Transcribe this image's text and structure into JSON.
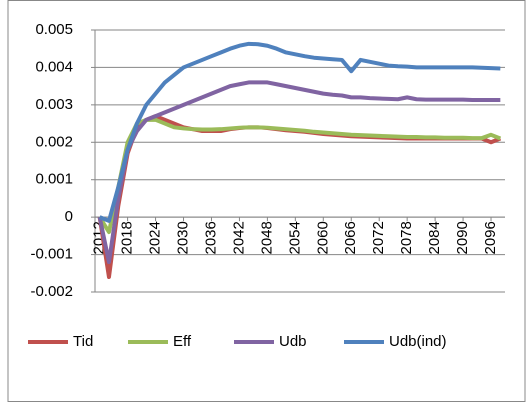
{
  "chart_data": {
    "type": "line",
    "x": [
      2012,
      2014,
      2016,
      2018,
      2020,
      2022,
      2024,
      2026,
      2028,
      2030,
      2032,
      2034,
      2036,
      2038,
      2040,
      2042,
      2044,
      2046,
      2048,
      2050,
      2052,
      2054,
      2056,
      2058,
      2060,
      2062,
      2064,
      2066,
      2068,
      2070,
      2072,
      2074,
      2076,
      2078,
      2080,
      2082,
      2084,
      2086,
      2088,
      2090,
      2092,
      2094,
      2096,
      2098
    ],
    "xlim": [
      2011,
      2099
    ],
    "xticks": [
      2012,
      2018,
      2024,
      2030,
      2036,
      2042,
      2048,
      2054,
      2060,
      2066,
      2072,
      2078,
      2084,
      2090,
      2096
    ],
    "ylim": [
      -0.002,
      0.005
    ],
    "yticks": [
      -0.002,
      -0.001,
      0,
      0.001,
      0.002,
      0.003,
      0.004,
      0.005
    ],
    "grid": true,
    "legend": "bottom",
    "series": [
      {
        "name": "Tid",
        "color": "#c0504d",
        "values": [
          0,
          -0.0016,
          0.0003,
          0.0017,
          0.0024,
          0.0026,
          0.0027,
          0.0026,
          0.0025,
          0.0024,
          0.00235,
          0.0023,
          0.0023,
          0.0023,
          0.00235,
          0.00238,
          0.0024,
          0.0024,
          0.00238,
          0.00235,
          0.00232,
          0.0023,
          0.00228,
          0.00225,
          0.00222,
          0.0022,
          0.00218,
          0.00216,
          0.00215,
          0.00214,
          0.00213,
          0.00212,
          0.00211,
          0.0021,
          0.0021,
          0.0021,
          0.0021,
          0.0021,
          0.0021,
          0.0021,
          0.0021,
          0.0021,
          0.002,
          0.0021
        ]
      },
      {
        "name": "Eff",
        "color": "#9bbb59",
        "values": [
          0,
          -0.0004,
          0.0008,
          0.002,
          0.0025,
          0.0026,
          0.0026,
          0.0025,
          0.0024,
          0.00237,
          0.00235,
          0.00234,
          0.00234,
          0.00235,
          0.00237,
          0.00239,
          0.0024,
          0.0024,
          0.00239,
          0.00237,
          0.00235,
          0.00233,
          0.00231,
          0.00228,
          0.00226,
          0.00224,
          0.00222,
          0.0022,
          0.00219,
          0.00218,
          0.00217,
          0.00216,
          0.00215,
          0.00214,
          0.00214,
          0.00213,
          0.00213,
          0.00212,
          0.00212,
          0.00212,
          0.00211,
          0.00211,
          0.0022,
          0.0021
        ]
      },
      {
        "name": "Udb",
        "color": "#8064a2",
        "values": [
          0,
          -0.0012,
          0.0005,
          0.0018,
          0.0023,
          0.0026,
          0.0027,
          0.0028,
          0.0029,
          0.003,
          0.0031,
          0.0032,
          0.0033,
          0.0034,
          0.0035,
          0.00355,
          0.0036,
          0.0036,
          0.0036,
          0.00355,
          0.0035,
          0.00345,
          0.0034,
          0.00335,
          0.0033,
          0.00327,
          0.00325,
          0.0032,
          0.0032,
          0.00318,
          0.00317,
          0.00316,
          0.00315,
          0.0032,
          0.00315,
          0.00314,
          0.00314,
          0.00314,
          0.00314,
          0.00314,
          0.00313,
          0.00313,
          0.00313,
          0.00313
        ]
      },
      {
        "name": "Udb(ind)",
        "color": "#4f81bd",
        "values": [
          0,
          -0.0001,
          0.0008,
          0.0018,
          0.0025,
          0.003,
          0.0033,
          0.0036,
          0.0038,
          0.004,
          0.0041,
          0.0042,
          0.0043,
          0.0044,
          0.0045,
          0.00458,
          0.00463,
          0.00462,
          0.00458,
          0.0045,
          0.0044,
          0.00435,
          0.0043,
          0.00426,
          0.00424,
          0.00422,
          0.0042,
          0.0039,
          0.0042,
          0.00415,
          0.0041,
          0.00405,
          0.00403,
          0.00402,
          0.004,
          0.004,
          0.004,
          0.004,
          0.004,
          0.004,
          0.004,
          0.00399,
          0.00398,
          0.00397
        ]
      }
    ]
  }
}
